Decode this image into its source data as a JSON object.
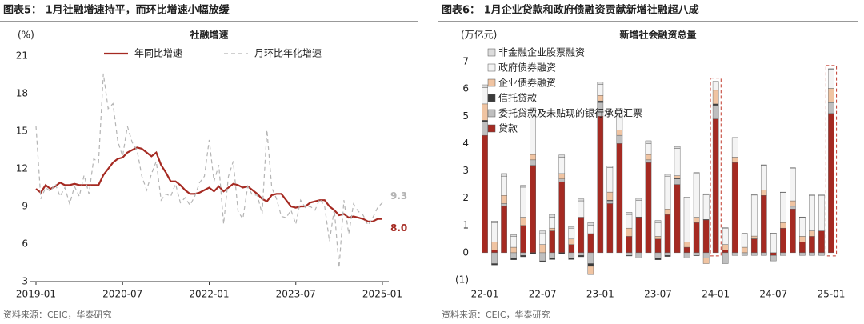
{
  "chart_data": [
    {
      "type": "line",
      "heading": "图表5： 1月社融增速持平，而环比增速小幅放缓",
      "title": "社融增速",
      "unit": "(%)",
      "source": "资料来源：CEIC，华泰研究",
      "categories": [
        "2019-01",
        null,
        null,
        null,
        null,
        null,
        null,
        null,
        null,
        null,
        null,
        null,
        null,
        null,
        null,
        null,
        null,
        null,
        "2020-07",
        null,
        null,
        null,
        null,
        null,
        null,
        null,
        null,
        null,
        null,
        null,
        null,
        null,
        null,
        null,
        null,
        null,
        "2022-01",
        null,
        null,
        null,
        null,
        null,
        null,
        null,
        null,
        null,
        null,
        null,
        null,
        null,
        null,
        null,
        null,
        null,
        "2023-07",
        null,
        null,
        null,
        null,
        null,
        null,
        null,
        null,
        null,
        null,
        null,
        null,
        null,
        null,
        null,
        null,
        null,
        "2025-01"
      ],
      "series": [
        {
          "name": "年同比增速",
          "color": "#a52a22",
          "dash": false,
          "values": [
            10.4,
            10.1,
            10.7,
            10.4,
            10.6,
            10.9,
            10.7,
            10.7,
            10.8,
            10.7,
            10.7,
            10.7,
            10.7,
            10.7,
            11.5,
            12.0,
            12.5,
            12.8,
            12.9,
            13.3,
            13.5,
            13.7,
            13.6,
            13.3,
            13.0,
            13.3,
            12.3,
            11.7,
            11.0,
            11.0,
            10.7,
            10.3,
            10.0,
            10.0,
            10.1,
            10.3,
            10.5,
            10.2,
            10.6,
            10.2,
            10.5,
            10.8,
            10.7,
            10.5,
            10.6,
            10.3,
            10.0,
            9.6,
            9.4,
            9.9,
            10.0,
            10.0,
            9.5,
            9.0,
            8.9,
            9.0,
            9.0,
            9.3,
            9.4,
            9.5,
            9.5,
            9.0,
            8.7,
            8.3,
            8.4,
            8.1,
            8.2,
            8.1,
            8.0,
            7.8,
            7.8,
            8.0,
            8.0
          ],
          "value_labels": [
            null,
            null,
            null,
            null,
            null,
            null,
            null,
            null,
            null,
            null,
            null,
            null,
            null,
            null,
            null,
            null,
            null,
            null,
            null,
            null,
            null,
            null,
            null,
            null,
            null,
            null,
            null,
            null,
            null,
            null,
            null,
            null,
            null,
            null,
            null,
            null,
            null,
            null,
            null,
            null,
            null,
            null,
            null,
            null,
            null,
            null,
            null,
            null,
            null,
            null,
            null,
            null,
            null,
            null,
            null,
            null,
            null,
            null,
            null,
            null,
            null,
            null,
            null,
            null,
            null,
            null,
            null,
            null,
            null,
            null,
            null,
            null,
            "8.0"
          ]
        },
        {
          "name": "月环比年化增速",
          "color": "#b4b4b4",
          "dash": true,
          "values": [
            15.4,
            9.6,
            10.5,
            10.2,
            10.8,
            9.8,
            10.5,
            9.2,
            10.6,
            9.8,
            11.5,
            10.0,
            12.8,
            12.5,
            19.6,
            16.8,
            17.2,
            14.2,
            13.0,
            15.4,
            14.1,
            13.5,
            11.4,
            10.3,
            11.6,
            12.6,
            9.5,
            10.0,
            9.8,
            10.8,
            9.3,
            9.7,
            9.1,
            9.8,
            10.9,
            11.4,
            14.3,
            11.0,
            12.3,
            7.6,
            11.4,
            12.6,
            8.6,
            8.0,
            10.6,
            9.9,
            9.9,
            8.4,
            15.1,
            10.5,
            9.6,
            8.2,
            8.1,
            8.7,
            7.6,
            9.5,
            8.9,
            9.0,
            8.7,
            9.6,
            9.0,
            6.2,
            8.8,
            4.1,
            9.5,
            6.8,
            9.2,
            8.6,
            8.3,
            7.5,
            8.1,
            8.9,
            9.3
          ]
        }
      ],
      "ylim": [
        3,
        21
      ],
      "yticks": [
        3,
        6,
        9,
        12,
        15,
        18,
        21
      ],
      "grid": false
    },
    {
      "type": "bar",
      "heading": "图表6： 1月企业贷款和政府债融资贡献新增社融超八成",
      "title": "新增社会融资总量",
      "unit": "(万亿元)",
      "source": "资料来源：CEIC，华泰研究",
      "categories": [
        "22-01",
        null,
        null,
        null,
        null,
        null,
        "22-07",
        null,
        null,
        null,
        null,
        null,
        "23-01",
        null,
        null,
        null,
        null,
        null,
        "23-07",
        null,
        null,
        null,
        null,
        null,
        "24-01",
        null,
        null,
        null,
        null,
        null,
        "24-07",
        null,
        null,
        null,
        null,
        null,
        "25-01"
      ],
      "series": [
        {
          "name": "贷款",
          "color": "#a52a22",
          "values": [
            4.3,
            0.1,
            1.7,
            0.0,
            1.0,
            3.2,
            0.0,
            0.8,
            2.6,
            0.3,
            1.3,
            0.7,
            5.0,
            1.8,
            4.0,
            0.6,
            1.3,
            3.3,
            0.5,
            1.4,
            2.5,
            0.2,
            1.1,
            1.2,
            4.9,
            0.1,
            3.3,
            0.0,
            0.5,
            2.1,
            -0.1,
            0.9,
            1.6,
            0.4,
            0.6,
            0.8,
            5.1
          ]
        },
        {
          "name": "委托贷款及未贴现的银行承兑汇票",
          "color": "#bfbfbf",
          "values": [
            0.5,
            -0.4,
            0.1,
            -0.2,
            -0.1,
            0.2,
            -0.3,
            -0.2,
            0.1,
            -0.2,
            -0.1,
            -0.4,
            0.5,
            0.1,
            0.3,
            -0.1,
            -0.2,
            0.1,
            -0.2,
            -0.1,
            0.2,
            -0.2,
            -0.1,
            -0.2,
            0.5,
            -0.4,
            -0.1,
            -0.1,
            -0.1,
            -0.1,
            -0.2,
            -0.1,
            0.1,
            -0.1,
            -0.1,
            -0.1,
            0.4
          ]
        },
        {
          "name": "信托贷款",
          "color": "#3a3a3a",
          "values": [
            0.05,
            -0.05,
            0.0,
            -0.06,
            -0.05,
            -0.04,
            -0.05,
            -0.05,
            -0.05,
            -0.05,
            -0.05,
            -0.1,
            0.06,
            0.02,
            0.0,
            -0.02,
            0.01,
            0.0,
            -0.06,
            -0.04,
            0.02,
            0.0,
            -0.01,
            0.02,
            0.05,
            0.0,
            0.0,
            0.0,
            0.01,
            0.0,
            0.0,
            0.0,
            0.0,
            0.0,
            0.0,
            0.0,
            0.02
          ]
        },
        {
          "name": "企业债券融资",
          "color": "#f0c4a2",
          "values": [
            0.6,
            0.3,
            0.3,
            0.2,
            0.3,
            0.2,
            0.3,
            0.1,
            0.2,
            0.2,
            0.0,
            -0.3,
            0.2,
            0.3,
            0.2,
            0.3,
            0.0,
            0.2,
            0.1,
            0.2,
            0.1,
            0.2,
            0.2,
            -0.2,
            0.5,
            0.2,
            0.2,
            0.2,
            0.1,
            0.2,
            0.0,
            0.2,
            0.2,
            0.2,
            0.2,
            0.0,
            0.5
          ]
        },
        {
          "name": "政府债券融资",
          "color": "#f4f4f4",
          "values": [
            0.6,
            0.7,
            0.7,
            0.4,
            1.1,
            1.6,
            0.4,
            0.4,
            0.6,
            0.4,
            0.6,
            0.3,
            0.4,
            0.9,
            0.7,
            0.5,
            0.6,
            0.4,
            0.5,
            1.2,
            1.0,
            1.6,
            1.6,
            0.9,
            0.3,
            0.6,
            0.7,
            0.5,
            1.5,
            0.9,
            0.7,
            1.1,
            1.2,
            0.7,
            1.3,
            1.3,
            0.7
          ]
        },
        {
          "name": "非金融企业股票融资",
          "color": "#dcdcdc",
          "values": [
            0.1,
            0.06,
            0.1,
            0.06,
            0.07,
            0.1,
            0.1,
            0.1,
            0.08,
            0.06,
            0.07,
            0.1,
            0.1,
            0.06,
            0.08,
            0.08,
            0.08,
            0.1,
            0.08,
            0.07,
            0.07,
            0.04,
            0.04,
            0.04,
            0.03,
            0.02,
            0.02,
            0.01,
            0.01,
            0.02,
            0.02,
            0.02,
            0.01,
            0.01,
            0.02,
            0.02,
            0.02
          ]
        }
      ],
      "ylim": [
        -1,
        7
      ],
      "yticks": [
        {
          "value": -1,
          "label": "(1)"
        },
        0,
        1,
        2,
        3,
        4,
        5,
        6,
        7
      ],
      "grid": false,
      "highlight": [
        24,
        36
      ]
    }
  ]
}
